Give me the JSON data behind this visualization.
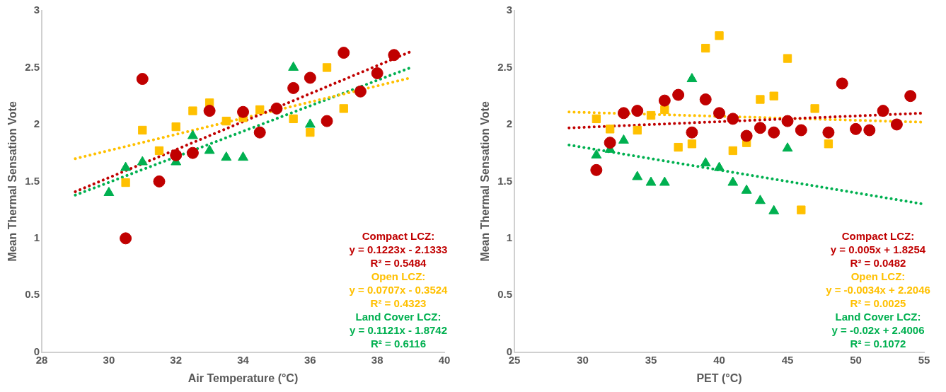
{
  "chart_data": [
    {
      "type": "scatter",
      "xlabel": "Air Temperature (°C)",
      "ylabel": "Mean Thermal Sensation Vote",
      "xlim": [
        28,
        40
      ],
      "xticks": [
        28,
        30,
        32,
        34,
        36,
        38,
        40
      ],
      "ylim": [
        0,
        3
      ],
      "yticks": [
        0,
        0.5,
        1,
        1.5,
        2,
        2.5,
        3
      ],
      "grid": false,
      "legend": false,
      "series": [
        {
          "color": "#c00000",
          "marker": "circle",
          "x": [
            30.5,
            31,
            31.5,
            32,
            32.5,
            33,
            34,
            34.5,
            35,
            35.5,
            36,
            36.5,
            37,
            37.5,
            38,
            38.5
          ],
          "values": [
            1.0,
            2.4,
            1.5,
            1.73,
            1.75,
            2.12,
            2.11,
            1.93,
            2.14,
            2.32,
            2.41,
            2.03,
            2.63,
            2.29,
            2.45,
            2.61
          ]
        },
        {
          "color": "#ffc000",
          "marker": "square",
          "x": [
            30.5,
            31,
            31.5,
            32,
            32.5,
            33,
            33.5,
            34,
            34.5,
            35,
            35.5,
            36,
            36.5,
            37
          ],
          "values": [
            1.49,
            1.95,
            1.77,
            1.98,
            2.12,
            2.19,
            2.03,
            2.06,
            2.13,
            null,
            2.05,
            1.93,
            2.5,
            2.14
          ]
        },
        {
          "color": "#00b050",
          "marker": "triangle",
          "x": [
            30,
            30.5,
            31,
            31.5,
            32,
            32.5,
            33,
            33.5,
            34,
            35.5,
            36
          ],
          "values": [
            1.4,
            1.62,
            1.67,
            null,
            1.67,
            1.9,
            1.77,
            1.71,
            1.71,
            2.5,
            2.0
          ]
        },
        {
          "type": "line",
          "color": "#c00000",
          "marker": "none",
          "line_style": "dotted",
          "x": [
            29,
            39
          ],
          "values": [
            1.41,
            2.64
          ]
        },
        {
          "type": "line",
          "color": "#ffc000",
          "marker": "none",
          "line_style": "dotted",
          "x": [
            29,
            39
          ],
          "values": [
            1.7,
            2.41
          ]
        },
        {
          "type": "line",
          "color": "#00b050",
          "marker": "none",
          "line_style": "dotted",
          "x": [
            29,
            39
          ],
          "values": [
            1.38,
            2.5
          ]
        }
      ],
      "annotations": [
        "Compact LCZ:\ny = 0.1223x - 2.1333\nR² = 0.5484",
        "Open LCZ:\ny = 0.0707x - 0.3524\nR² = 0.4323",
        "Land Cover LCZ:\ny = 0.1121x - 1.8742\nR² = 0.6116"
      ]
    },
    {
      "type": "scatter",
      "xlabel": "PET (°C)",
      "ylabel": "Mean Thermal Sensation Vote",
      "xlim": [
        25,
        55
      ],
      "xticks": [
        25,
        30,
        35,
        40,
        45,
        50,
        55
      ],
      "ylim": [
        0,
        3
      ],
      "yticks": [
        0,
        0.5,
        1,
        1.5,
        2,
        2.5,
        3
      ],
      "grid": false,
      "legend": false,
      "series": [
        {
          "color": "#c00000",
          "marker": "circle",
          "x": [
            31,
            32,
            33,
            34,
            36,
            37,
            38,
            39,
            40,
            41,
            42,
            43,
            44,
            45,
            46,
            48,
            49,
            50,
            51,
            52,
            53,
            54
          ],
          "values": [
            1.6,
            1.84,
            2.1,
            2.12,
            2.21,
            2.26,
            1.93,
            2.22,
            2.1,
            2.05,
            1.9,
            1.97,
            1.93,
            2.03,
            1.95,
            1.93,
            2.36,
            1.96,
            1.95,
            2.12,
            2.0,
            2.25
          ]
        },
        {
          "color": "#ffc000",
          "marker": "square",
          "x": [
            31,
            32,
            33,
            34,
            35,
            36,
            37,
            38,
            39,
            40,
            41,
            42,
            43,
            44,
            45,
            46,
            47,
            48
          ],
          "values": [
            2.05,
            1.96,
            null,
            1.95,
            2.08,
            2.13,
            1.8,
            1.83,
            2.67,
            2.78,
            1.77,
            1.84,
            2.22,
            2.25,
            2.58,
            1.25,
            2.14,
            1.83
          ]
        },
        {
          "color": "#00b050",
          "marker": "triangle",
          "x": [
            31,
            32,
            33,
            34,
            35,
            36,
            38,
            39,
            40,
            41,
            42,
            43,
            44,
            45
          ],
          "values": [
            1.73,
            1.78,
            1.86,
            1.54,
            1.49,
            1.49,
            2.4,
            1.66,
            1.62,
            1.49,
            1.42,
            1.33,
            1.24,
            1.79
          ]
        },
        {
          "type": "line",
          "color": "#c00000",
          "marker": "none",
          "line_style": "dotted",
          "x": [
            29,
            55
          ],
          "values": [
            1.97,
            2.1
          ]
        },
        {
          "type": "line",
          "color": "#ffc000",
          "marker": "none",
          "line_style": "dotted",
          "x": [
            29,
            55
          ],
          "values": [
            2.11,
            2.02
          ]
        },
        {
          "type": "line",
          "color": "#00b050",
          "marker": "none",
          "line_style": "dotted",
          "x": [
            29,
            55
          ],
          "values": [
            1.82,
            1.3
          ]
        }
      ],
      "annotations": [
        "Compact LCZ:\ny = 0.005x + 1.8254\nR² = 0.0482",
        "Open LCZ:\ny = -0.0034x + 2.2046\nR² = 0.0025",
        "Land Cover LCZ:\ny = -0.02x + 2.4006\nR² = 0.1072"
      ]
    }
  ]
}
